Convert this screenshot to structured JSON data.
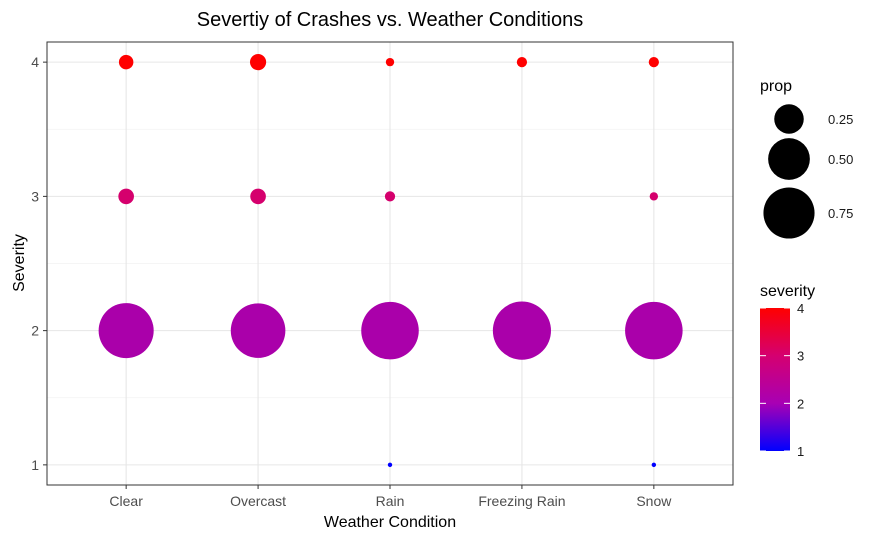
{
  "chart_data": {
    "type": "scatter",
    "title": "Severtiy of Crashes vs. Weather Conditions",
    "xlabel": "Weather Condition",
    "ylabel": "Severity",
    "categories": [
      "Clear",
      "Overcast",
      "Rain",
      "Freezing Rain",
      "Snow"
    ],
    "y_ticks": [
      "1",
      "2",
      "3",
      "4"
    ],
    "ylim": [
      0.85,
      4.15
    ],
    "grid": true,
    "size_scale_max": 0.9,
    "points": [
      {
        "x": "Clear",
        "severity": 4,
        "prop": 0.06
      },
      {
        "x": "Clear",
        "severity": 3,
        "prop": 0.07
      },
      {
        "x": "Clear",
        "severity": 2,
        "prop": 0.87
      },
      {
        "x": "Overcast",
        "severity": 4,
        "prop": 0.075
      },
      {
        "x": "Overcast",
        "severity": 3,
        "prop": 0.07
      },
      {
        "x": "Overcast",
        "severity": 2,
        "prop": 0.855
      },
      {
        "x": "Rain",
        "severity": 4,
        "prop": 0.02
      },
      {
        "x": "Rain",
        "severity": 3,
        "prop": 0.03
      },
      {
        "x": "Rain",
        "severity": 2,
        "prop": 0.95
      },
      {
        "x": "Rain",
        "severity": 1,
        "prop": 0.003
      },
      {
        "x": "Freezing Rain",
        "severity": 4,
        "prop": 0.03
      },
      {
        "x": "Freezing Rain",
        "severity": 2,
        "prop": 0.97
      },
      {
        "x": "Snow",
        "severity": 4,
        "prop": 0.03
      },
      {
        "x": "Snow",
        "severity": 3,
        "prop": 0.02
      },
      {
        "x": "Snow",
        "severity": 2,
        "prop": 0.95
      },
      {
        "x": "Snow",
        "severity": 1,
        "prop": 0.002
      }
    ],
    "legend_size": {
      "title": "prop",
      "entries": [
        {
          "label": "0.25",
          "value": 0.25
        },
        {
          "label": "0.50",
          "value": 0.5
        },
        {
          "label": "0.75",
          "value": 0.75
        }
      ]
    },
    "legend_color": {
      "title": "severity",
      "min": 1,
      "max": 4,
      "ticks": [
        "1",
        "2",
        "3",
        "4"
      ],
      "low_color": "#0000ff",
      "high_color": "#ff0000",
      "point_color_low": "#0000ff",
      "point_color_2": "#aa00aa",
      "point_color_3": "#d5006d",
      "point_color_high": "#ff0000"
    }
  }
}
